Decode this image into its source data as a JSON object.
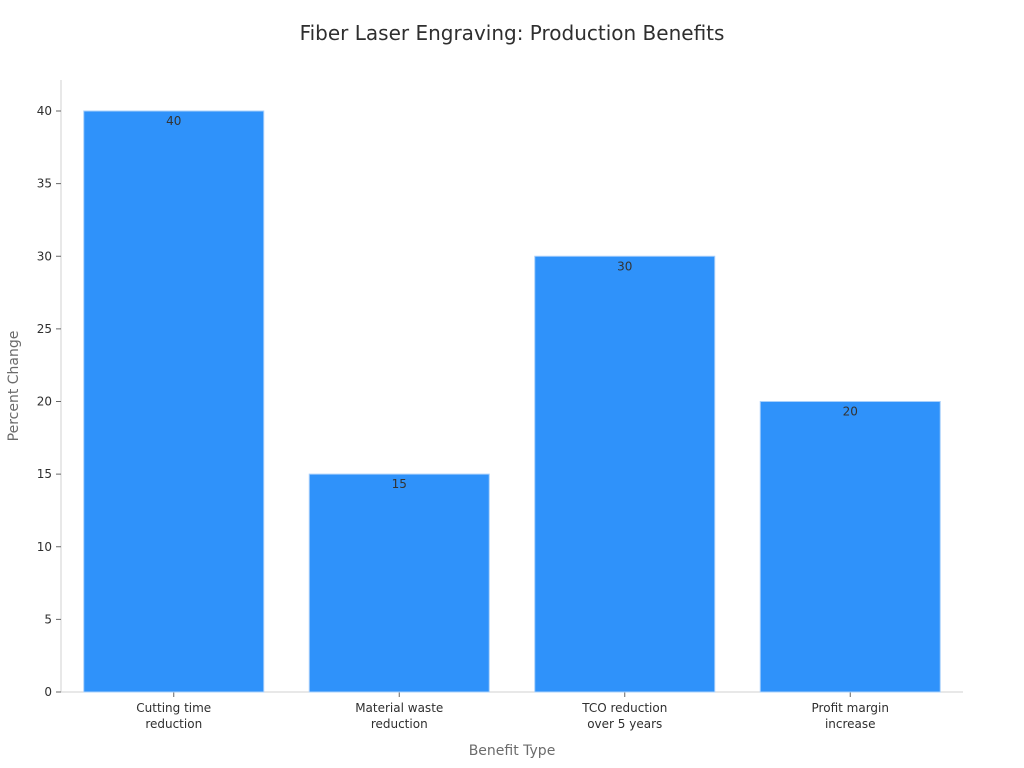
{
  "chart_data": {
    "type": "bar",
    "title": "Fiber Laser Engraving: Production Benefits",
    "xlabel": "Benefit Type",
    "ylabel": "Percent Change",
    "categories": [
      [
        "Cutting time",
        "reduction"
      ],
      [
        "Material waste",
        "reduction"
      ],
      [
        "TCO reduction",
        "over 5 years"
      ],
      [
        "Profit margin",
        "increase"
      ]
    ],
    "values": [
      40,
      15,
      30,
      20
    ],
    "data_labels": [
      "40",
      "15",
      "30",
      "20"
    ],
    "yticks": [
      0,
      5,
      10,
      15,
      20,
      25,
      30,
      35,
      40
    ],
    "ylim": [
      0,
      42
    ],
    "grid": false,
    "bar_color": "#2f92fa"
  }
}
